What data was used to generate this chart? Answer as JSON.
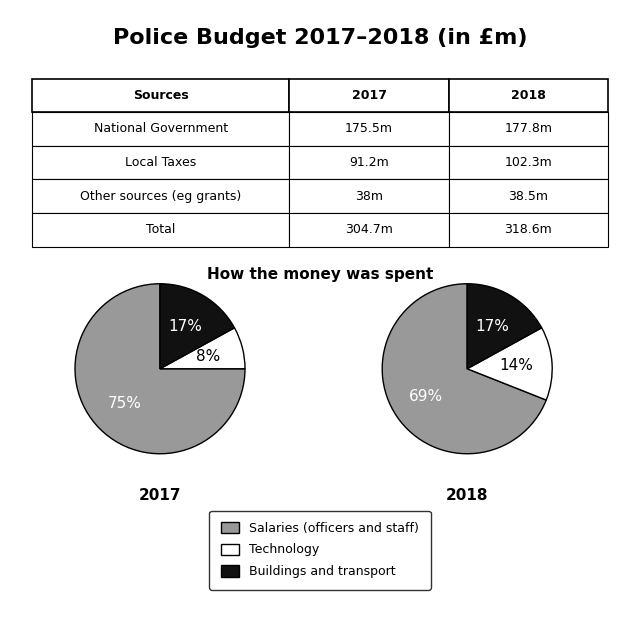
{
  "title": "Police Budget 2017–2018 (in £m)",
  "table": {
    "headers": [
      "Sources",
      "2017",
      "2018"
    ],
    "rows": [
      [
        "National Government",
        "175.5m",
        "177.8m"
      ],
      [
        "Local Taxes",
        "91.2m",
        "102.3m"
      ],
      [
        "Other sources (eg grants)",
        "38m",
        "38.5m"
      ],
      [
        "Total",
        "304.7m",
        "318.6m"
      ]
    ]
  },
  "pie_title": "How the money was spent",
  "pie_2017": {
    "label": "2017",
    "slices": [
      75,
      8,
      17
    ],
    "labels": [
      "75%",
      "8%",
      "17%"
    ],
    "colors": [
      "#999999",
      "#ffffff",
      "#111111"
    ],
    "startangle": 90
  },
  "pie_2018": {
    "label": "2018",
    "slices": [
      69,
      14,
      17
    ],
    "labels": [
      "69%",
      "14%",
      "17%"
    ],
    "colors": [
      "#999999",
      "#ffffff",
      "#111111"
    ],
    "startangle": 90
  },
  "legend_labels": [
    "Salaries (officers and staff)",
    "Technology",
    "Buildings and transport"
  ],
  "legend_colors": [
    "#999999",
    "#ffffff",
    "#111111"
  ],
  "background_color": "#ffffff",
  "title_fontsize": 16,
  "table_fontsize": 9,
  "pie_title_fontsize": 11,
  "pie_label_fontsize": 11,
  "year_label_fontsize": 11,
  "legend_fontsize": 9
}
